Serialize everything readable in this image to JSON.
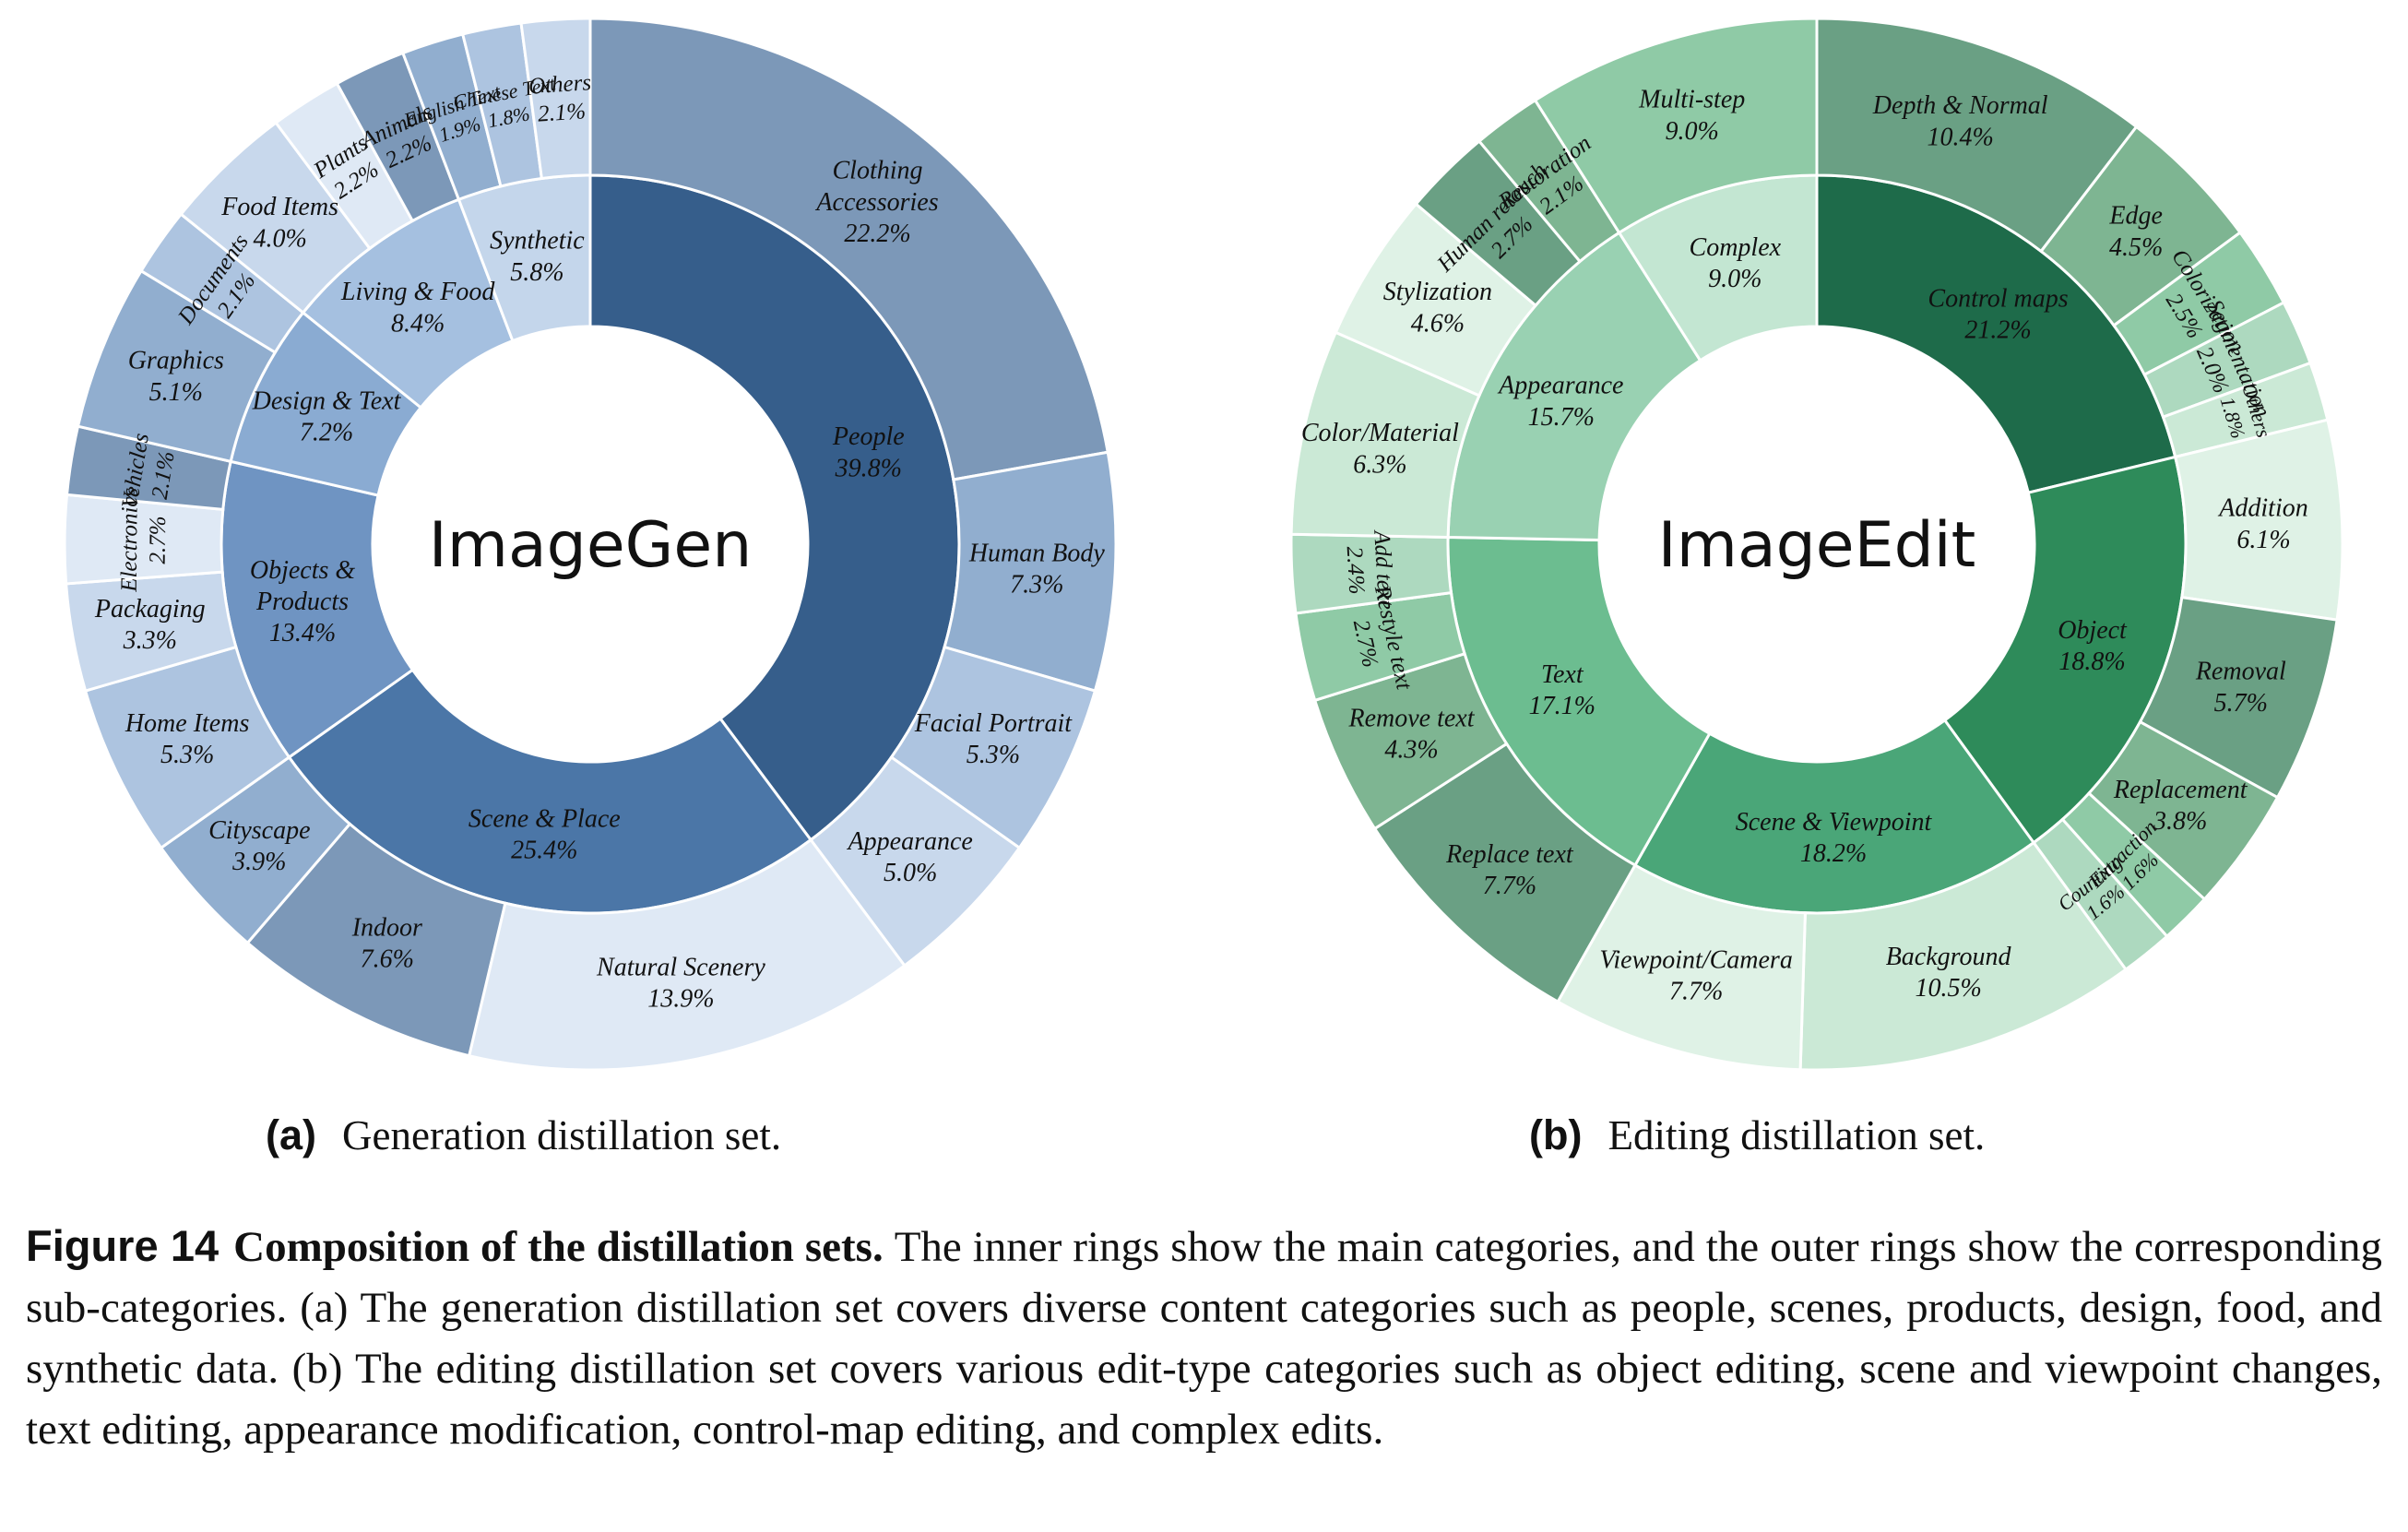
{
  "chart_data": [
    {
      "type": "sunburst",
      "title": "ImageGen",
      "subcaption_tag": "(a)",
      "subcaption": "Generation distillation set.",
      "colors": {
        "inner": [
          "#365e8b",
          "#4b76a7",
          "#6f94c2",
          "#8aabd2",
          "#a5c0e0",
          "#c4d6eb"
        ],
        "outer": [
          "#7c98b8",
          "#91aecf",
          "#adc4e0",
          "#c8d8ec",
          "#dfe9f5"
        ],
        "stroke": "#ffffff"
      },
      "categories": [
        {
          "name": "People",
          "value": "39.8%",
          "share": 39.8,
          "sub": [
            {
              "name": "Clothing\nAccessories",
              "value": "22.2%",
              "share": 22.2
            },
            {
              "name": "Human Body",
              "value": "7.3%",
              "share": 7.3
            },
            {
              "name": "Facial Portrait",
              "value": "5.3%",
              "share": 5.3
            },
            {
              "name": "Appearance",
              "value": "5.0%",
              "share": 5.0
            }
          ]
        },
        {
          "name": "Scene & Place",
          "value": "25.4%",
          "share": 25.4,
          "sub": [
            {
              "name": "Natural Scenery",
              "value": "13.9%",
              "share": 13.9
            },
            {
              "name": "Indoor",
              "value": "7.6%",
              "share": 7.6
            },
            {
              "name": "Cityscape",
              "value": "3.9%",
              "share": 3.9
            }
          ]
        },
        {
          "name": "Objects &\nProducts",
          "value": "13.4%",
          "share": 13.4,
          "sub": [
            {
              "name": "Home Items",
              "value": "5.3%",
              "share": 5.3
            },
            {
              "name": "Packaging",
              "value": "3.3%",
              "share": 3.3
            },
            {
              "name": "Electronics",
              "value": "2.7%",
              "share": 2.7
            },
            {
              "name": "Vehicles",
              "value": "2.1%",
              "share": 2.1
            }
          ]
        },
        {
          "name": "Design & Text",
          "value": "7.2%",
          "share": 7.2,
          "sub": [
            {
              "name": "Graphics",
              "value": "5.1%",
              "share": 5.1
            },
            {
              "name": "Documents",
              "value": "2.1%",
              "share": 2.1
            }
          ]
        },
        {
          "name": "Living & Food",
          "value": "8.4%",
          "share": 8.4,
          "sub": [
            {
              "name": "Food Items",
              "value": "4.0%",
              "share": 4.0
            },
            {
              "name": "Plants",
              "value": "2.2%",
              "share": 2.2
            },
            {
              "name": "Animals",
              "value": "2.2%",
              "share": 2.2
            }
          ]
        },
        {
          "name": "Synthetic",
          "value": "5.8%",
          "share": 5.8,
          "sub": [
            {
              "name": "English Text",
              "value": "1.9%",
              "share": 1.9
            },
            {
              "name": "Chinese Text",
              "value": "1.8%",
              "share": 1.8
            },
            {
              "name": "Others",
              "value": "2.1%",
              "share": 2.1
            }
          ]
        }
      ]
    },
    {
      "type": "sunburst",
      "title": "ImageEdit",
      "subcaption_tag": "(b)",
      "subcaption": "Editing distillation set.",
      "colors": {
        "inner": [
          "#1e6b4a",
          "#2e8b5a",
          "#4aa678",
          "#6cbd90",
          "#99d1b2",
          "#c3e6d2"
        ],
        "outer": [
          "#6aa084",
          "#7eb592",
          "#8fcaa6",
          "#add9bf",
          "#cbe9d6",
          "#dff2e6"
        ],
        "stroke": "#ffffff"
      },
      "categories": [
        {
          "name": "Control maps",
          "value": "21.2%",
          "share": 21.2,
          "sub": [
            {
              "name": "Depth & Normal",
              "value": "10.4%",
              "share": 10.4
            },
            {
              "name": "Edge",
              "value": "4.5%",
              "share": 4.5
            },
            {
              "name": "Colorization",
              "value": "2.5%",
              "share": 2.5
            },
            {
              "name": "Segmentation",
              "value": "2.0%",
              "share": 2.0
            },
            {
              "name": "Others",
              "value": "1.8%",
              "share": 1.8
            }
          ]
        },
        {
          "name": "Object",
          "value": "18.8%",
          "share": 18.8,
          "sub": [
            {
              "name": "Addition",
              "value": "6.1%",
              "share": 6.1
            },
            {
              "name": "Removal",
              "value": "5.7%",
              "share": 5.7
            },
            {
              "name": "Replacement",
              "value": "3.8%",
              "share": 3.8
            },
            {
              "name": "Extraction",
              "value": "1.6%",
              "share": 1.6
            },
            {
              "name": "Counting",
              "value": "1.6%",
              "share": 1.6
            }
          ]
        },
        {
          "name": "Scene & Viewpoint",
          "value": "18.2%",
          "share": 18.2,
          "sub": [
            {
              "name": "Background",
              "value": "10.5%",
              "share": 10.5
            },
            {
              "name": "Viewpoint/Camera",
              "value": "7.7%",
              "share": 7.7
            }
          ]
        },
        {
          "name": "Text",
          "value": "17.1%",
          "share": 17.1,
          "sub": [
            {
              "name": "Replace text",
              "value": "7.7%",
              "share": 7.7
            },
            {
              "name": "Remove text",
              "value": "4.3%",
              "share": 4.3
            },
            {
              "name": "Restyle text",
              "value": "2.7%",
              "share": 2.7
            },
            {
              "name": "Add text",
              "value": "2.4%",
              "share": 2.4
            }
          ]
        },
        {
          "name": "Appearance",
          "value": "15.7%",
          "share": 15.7,
          "sub": [
            {
              "name": "Color/Material",
              "value": "6.3%",
              "share": 6.3
            },
            {
              "name": "Stylization",
              "value": "4.6%",
              "share": 4.6
            },
            {
              "name": "Human retouch",
              "value": "2.7%",
              "share": 2.7
            },
            {
              "name": "Restoration",
              "value": "2.1%",
              "share": 2.1
            }
          ]
        },
        {
          "name": "Complex",
          "value": "9.0%",
          "share": 9.0,
          "sub": [
            {
              "name": "Multi-step",
              "value": "9.0%",
              "share": 9.0
            }
          ]
        }
      ]
    }
  ],
  "caption": {
    "figure_number": "Figure 14",
    "title": "Composition of the distillation sets.",
    "body": "The inner rings show the main categories, and the outer rings show the corresponding sub-categories. (a) The generation distillation set covers diverse content categories such as people, scenes, products, design, food, and synthetic data. (b) The editing distillation set covers various edit-type categories such as object editing, scene and viewpoint changes, text editing, appearance modification, control-map editing, and complex edits."
  }
}
